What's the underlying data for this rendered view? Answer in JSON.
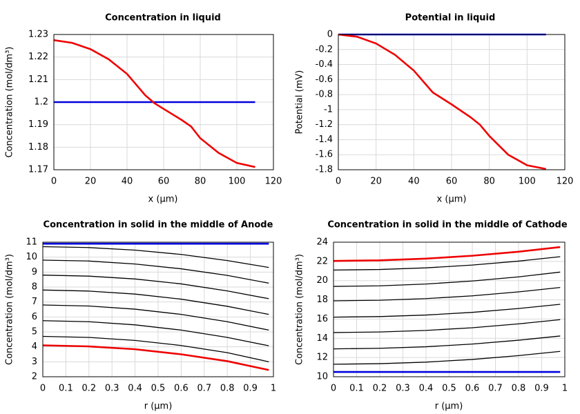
{
  "chart_data": [
    {
      "type": "line",
      "title": "Concentration in liquid",
      "xlabel": "x (µm)",
      "ylabel": "Concentration (mol/dm³)",
      "x": [
        0,
        10,
        20,
        30,
        40,
        50,
        55,
        60,
        70,
        75,
        80,
        90,
        100,
        110
      ],
      "series": [
        {
          "color": "#0000dd",
          "values": [
            1.2,
            1.2,
            1.2,
            1.2,
            1.2,
            1.2,
            1.2,
            1.2,
            1.2,
            1.2,
            1.2,
            1.2,
            1.2,
            1.2
          ]
        },
        {
          "color": "#ee0000",
          "values": [
            1.2275,
            1.2263,
            1.2235,
            1.219,
            1.2125,
            1.203,
            1.1995,
            1.197,
            1.192,
            1.1892,
            1.184,
            1.1775,
            1.173,
            1.1712
          ]
        }
      ],
      "xlim": [
        0,
        120
      ],
      "ylim": [
        1.17,
        1.23
      ],
      "xticks": [
        0,
        20,
        40,
        60,
        80,
        100,
        120
      ],
      "yticks": [
        1.17,
        1.18,
        1.19,
        1.2,
        1.21,
        1.22,
        1.23
      ],
      "grid": true
    },
    {
      "type": "line",
      "title": "Potential in liquid",
      "xlabel": "x (µm)",
      "ylabel": "Potential (mV)",
      "x": [
        0,
        10,
        20,
        30,
        40,
        50,
        60,
        70,
        75,
        80,
        90,
        100,
        110
      ],
      "series": [
        {
          "color": "#0000dd",
          "values": [
            0,
            0,
            0,
            0,
            0,
            0,
            0,
            0,
            0,
            0,
            0,
            0,
            0
          ]
        },
        {
          "color": "#ee0000",
          "values": [
            0,
            -0.03,
            -0.12,
            -0.27,
            -0.48,
            -0.77,
            -0.93,
            -1.1,
            -1.2,
            -1.35,
            -1.6,
            -1.74,
            -1.79
          ]
        }
      ],
      "xlim": [
        0,
        120
      ],
      "ylim": [
        -1.8,
        0
      ],
      "xticks": [
        0,
        20,
        40,
        60,
        80,
        100,
        120
      ],
      "yticks": [
        0,
        -0.2,
        -0.4,
        -0.6,
        -0.8,
        -1,
        -1.2,
        -1.4,
        -1.6,
        -1.8
      ],
      "grid": true
    },
    {
      "type": "line",
      "title": "Concentration in solid in the middle of Anode",
      "xlabel": "r (µm)",
      "ylabel": "Concentration (mol/dm³)",
      "x": [
        0,
        0.2,
        0.4,
        0.6,
        0.8,
        0.98
      ],
      "series": [
        {
          "color": "#0000dd",
          "values": [
            10.9,
            10.9,
            10.9,
            10.9,
            10.9,
            10.9
          ]
        },
        {
          "color": "#000000",
          "values": [
            10.7,
            10.64,
            10.47,
            10.18,
            9.77,
            9.31
          ]
        },
        {
          "color": "#000000",
          "values": [
            9.8,
            9.74,
            9.54,
            9.22,
            8.78,
            8.26
          ]
        },
        {
          "color": "#000000",
          "values": [
            8.8,
            8.73,
            8.54,
            8.21,
            7.74,
            7.22
          ]
        },
        {
          "color": "#000000",
          "values": [
            7.8,
            7.73,
            7.53,
            7.19,
            6.71,
            6.17
          ]
        },
        {
          "color": "#000000",
          "values": [
            6.8,
            6.73,
            6.52,
            6.17,
            5.68,
            5.12
          ]
        },
        {
          "color": "#000000",
          "values": [
            5.75,
            5.68,
            5.47,
            5.12,
            4.63,
            4.07
          ]
        },
        {
          "color": "#000000",
          "values": [
            4.7,
            4.63,
            4.43,
            4.09,
            3.61,
            3.0
          ]
        },
        {
          "color": "#ee0000",
          "values": [
            4.1,
            4.03,
            3.84,
            3.5,
            3.04,
            2.45
          ]
        }
      ],
      "xlim": [
        0,
        1
      ],
      "ylim": [
        2,
        11
      ],
      "xticks": [
        0,
        0.1,
        0.2,
        0.3,
        0.4,
        0.5,
        0.6,
        0.7,
        0.8,
        0.9,
        1
      ],
      "yticks": [
        2,
        3,
        4,
        5,
        6,
        7,
        8,
        9,
        10,
        11
      ],
      "grid": true
    },
    {
      "type": "line",
      "title": "Concentration in solid in the middle of Cathode",
      "xlabel": "r (µm)",
      "ylabel": "Concentration (mol/dm³)",
      "x": [
        0,
        0.2,
        0.4,
        0.6,
        0.8,
        0.98
      ],
      "series": [
        {
          "color": "#ee0000",
          "values": [
            22.05,
            22.11,
            22.29,
            22.59,
            23.01,
            23.49
          ]
        },
        {
          "color": "#000000",
          "values": [
            21.1,
            21.16,
            21.33,
            21.62,
            22.03,
            22.49
          ]
        },
        {
          "color": "#000000",
          "values": [
            19.4,
            19.46,
            19.65,
            19.96,
            20.39,
            20.89
          ]
        },
        {
          "color": "#000000",
          "values": [
            17.9,
            17.96,
            18.13,
            18.42,
            18.83,
            19.29
          ]
        },
        {
          "color": "#000000",
          "values": [
            16.2,
            16.26,
            16.42,
            16.7,
            17.1,
            17.54
          ]
        },
        {
          "color": "#000000",
          "values": [
            14.6,
            14.66,
            14.82,
            15.1,
            15.5,
            15.94
          ]
        },
        {
          "color": "#000000",
          "values": [
            12.9,
            12.96,
            13.12,
            13.4,
            13.8,
            14.24
          ]
        },
        {
          "color": "#000000",
          "values": [
            11.3,
            11.36,
            11.52,
            11.8,
            12.2,
            12.64
          ]
        },
        {
          "color": "#0000dd",
          "values": [
            10.5,
            10.5,
            10.5,
            10.5,
            10.5,
            10.5
          ]
        }
      ],
      "xlim": [
        0,
        1
      ],
      "ylim": [
        10,
        24
      ],
      "xticks": [
        0,
        0.1,
        0.2,
        0.3,
        0.4,
        0.5,
        0.6,
        0.7,
        0.8,
        0.9,
        1
      ],
      "yticks": [
        10,
        12,
        14,
        16,
        18,
        20,
        22,
        24
      ],
      "grid": true
    }
  ]
}
